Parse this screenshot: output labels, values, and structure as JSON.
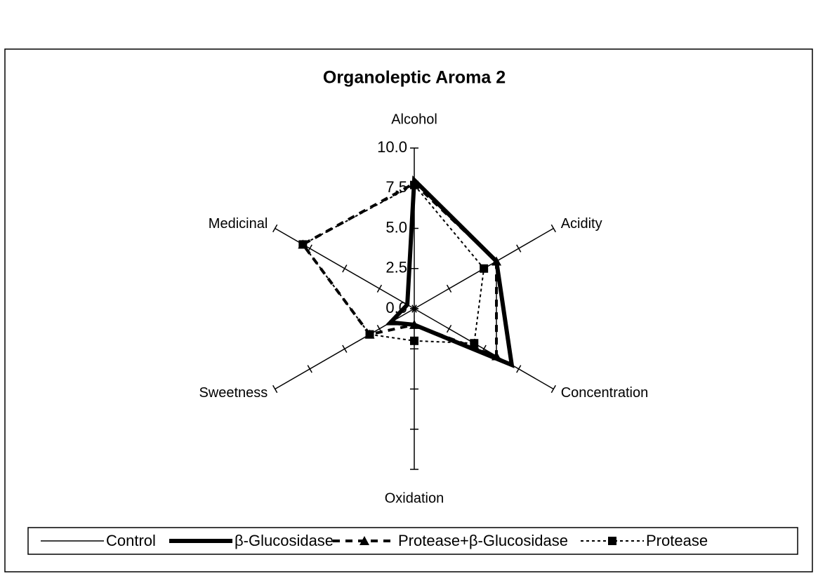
{
  "chart_data": {
    "type": "radar",
    "title": "Organoleptic Aroma 2",
    "categories": [
      "Alcohol",
      "Acidity",
      "Concentration",
      "Oxidation",
      "Sweetness",
      "Medicinal"
    ],
    "series": [
      {
        "name": "Control",
        "color": "#000000",
        "width": 1.5,
        "dash": "none",
        "marker": "none",
        "values": [
          8.0,
          5.9,
          5.9,
          1.0,
          2.0,
          0.5
        ]
      },
      {
        "name": "β-Glucosidase",
        "color": "#000000",
        "width": 6,
        "dash": "none",
        "marker": "none",
        "values": [
          8.0,
          5.9,
          7.0,
          1.0,
          1.7,
          0.5
        ]
      },
      {
        "name": "Protease+β-Glucosidase",
        "color": "#000000",
        "width": 4,
        "dash": "10,8",
        "marker": "triangle",
        "values": [
          7.8,
          5.9,
          5.9,
          1.0,
          3.2,
          8.0
        ]
      },
      {
        "name": "Protease",
        "color": "#000000",
        "width": 2,
        "dash": "4,4",
        "marker": "square",
        "values": [
          7.7,
          5.0,
          4.3,
          2.0,
          3.2,
          8.0
        ]
      }
    ],
    "ylim": [
      0,
      10
    ],
    "yticks": [
      {
        "value": 0,
        "label": "0.0"
      },
      {
        "value": 2.5,
        "label": "2.5"
      },
      {
        "value": 5,
        "label": "5.0"
      },
      {
        "value": 7.5,
        "label": "7.5"
      },
      {
        "value": 10,
        "label": "10.0"
      }
    ]
  }
}
